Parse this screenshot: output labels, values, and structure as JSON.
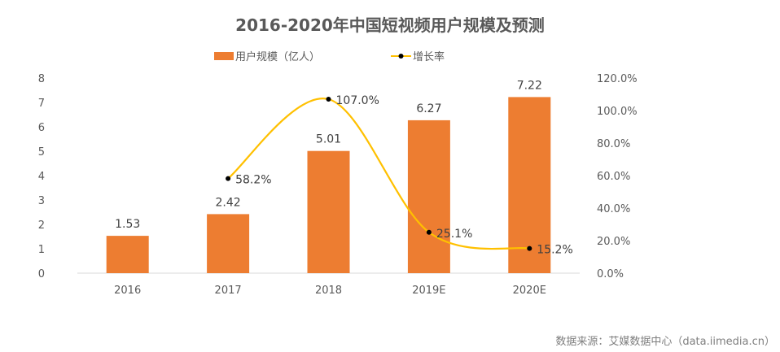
{
  "chart_data": {
    "type": "bar",
    "title": "2016-2020年中国短视频用户规模及预测",
    "categories": [
      "2016",
      "2017",
      "2018",
      "2019E",
      "2020E"
    ],
    "series": [
      {
        "name": "用户规模（亿人）",
        "type": "bar",
        "axis": "left",
        "color": "#ED7D31",
        "values": [
          1.53,
          2.42,
          5.01,
          6.27,
          7.22
        ],
        "labels": [
          "1.53",
          "2.42",
          "5.01",
          "6.27",
          "7.22"
        ]
      },
      {
        "name": "增长率",
        "type": "line",
        "axis": "right",
        "color": "#FFC000",
        "marker_color": "#000000",
        "smooth": true,
        "values": [
          null,
          58.2,
          107.0,
          25.1,
          15.2
        ],
        "labels": [
          "",
          "58.2%",
          "107.0%",
          "25.1%",
          "15.2%"
        ]
      }
    ],
    "y_left": {
      "label": "",
      "ylim": [
        0,
        8
      ],
      "ticks": [
        "0",
        "1",
        "2",
        "3",
        "4",
        "5",
        "6",
        "7",
        "8"
      ]
    },
    "y_right": {
      "label": "",
      "ylim": [
        0,
        120
      ],
      "ticks": [
        "0.0%",
        "20.0%",
        "40.0%",
        "60.0%",
        "80.0%",
        "100.0%",
        "120.0%"
      ]
    },
    "xlabel": "",
    "grid": false,
    "legend": {
      "position": "top",
      "entries": [
        "用户规模（亿人）",
        "增长率"
      ]
    },
    "source": "数据来源：艾媒数据中心（data.iimedia.cn）"
  }
}
